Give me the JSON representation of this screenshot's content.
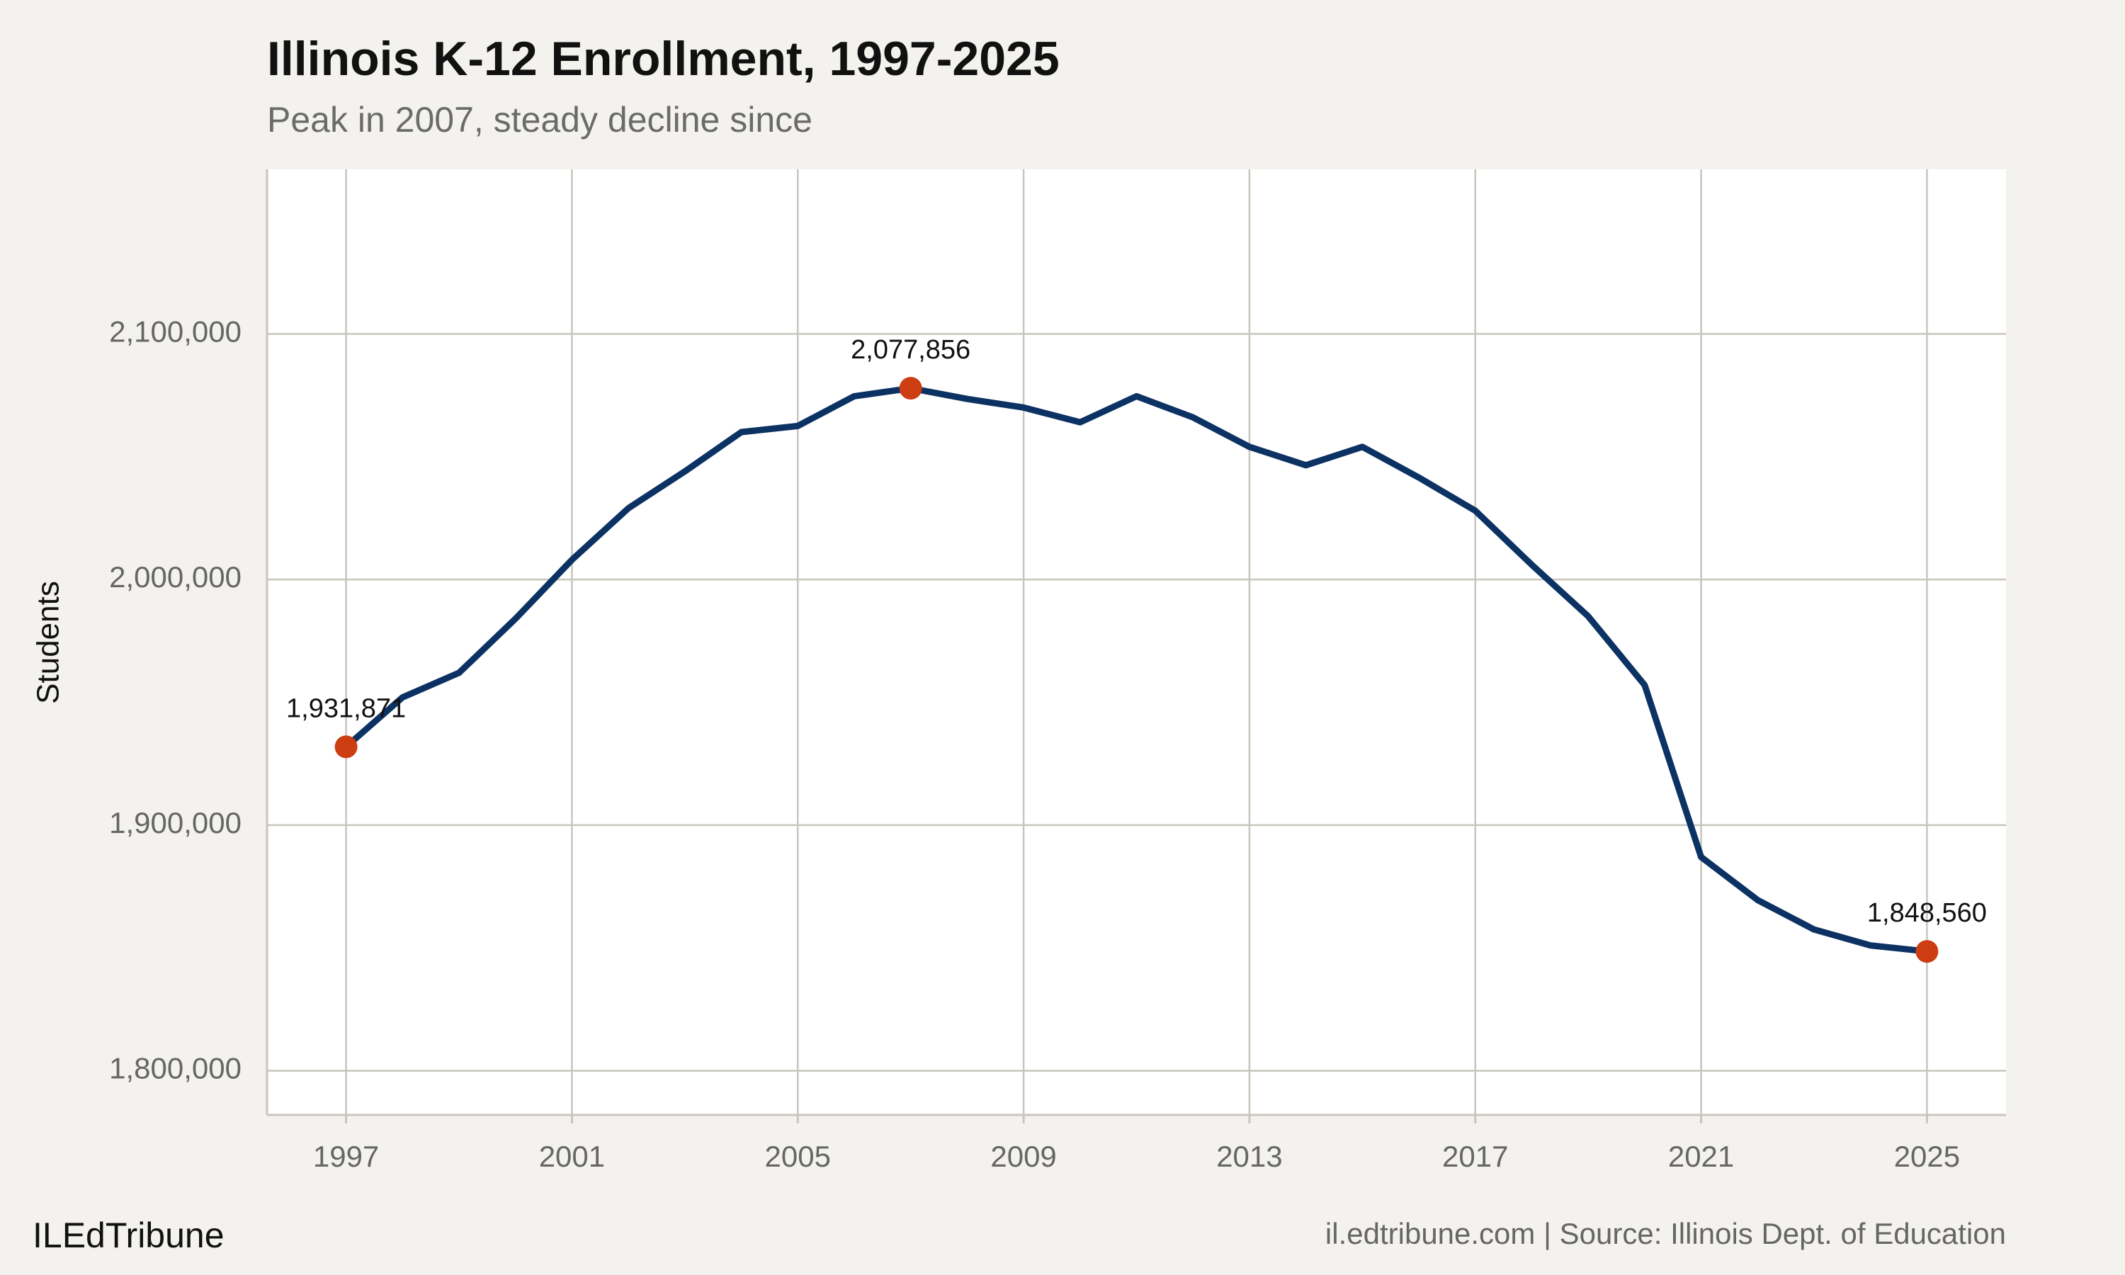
{
  "chart_data": {
    "type": "line",
    "title": "Illinois K-12 Enrollment, 1997-2025",
    "subtitle": "Peak in 2007, steady decline since",
    "y_label": "Students",
    "brand": "ILEdTribune",
    "source": "il.edtribune.com | Source: Illinois Dept. of Education",
    "x": [
      1997,
      1998,
      1999,
      2000,
      2001,
      2002,
      2003,
      2004,
      2005,
      2006,
      2007,
      2008,
      2009,
      2010,
      2011,
      2012,
      2013,
      2014,
      2015,
      2016,
      2017,
      2018,
      2019,
      2020,
      2021,
      2022,
      2023,
      2024,
      2025
    ],
    "series": [
      {
        "name": "Students",
        "color": "#0b3263",
        "values": [
          1931871,
          1952000,
          1962000,
          1984000,
          2008000,
          2029000,
          2044000,
          2060000,
          2062500,
          2074600,
          2077856,
          2073500,
          2070000,
          2064000,
          2074600,
          2066000,
          2054000,
          2046500,
          2054000,
          2041500,
          2028000,
          2006000,
          1985000,
          1957000,
          1887000,
          1869500,
          1857500,
          1851000,
          1848560
        ]
      }
    ],
    "annotations": [
      {
        "x": 1997,
        "y": 1931871,
        "label": "1,931,871"
      },
      {
        "x": 2007,
        "y": 2077856,
        "label": "2,077,856"
      },
      {
        "x": 2025,
        "y": 1848560,
        "label": "1,848,560"
      }
    ],
    "annotation_color": "#cc3d12",
    "xlim": [
      1995.6,
      2026.4
    ],
    "ylim": [
      1782000,
      2167000
    ],
    "xticks": [
      1997,
      2001,
      2005,
      2009,
      2013,
      2017,
      2021,
      2025
    ],
    "yticks": [
      {
        "value": 1800000,
        "label": "1,800,000"
      },
      {
        "value": 1900000,
        "label": "1,900,000"
      },
      {
        "value": 2000000,
        "label": "2,000,000"
      },
      {
        "value": 2100000,
        "label": "2,100,000"
      }
    ],
    "grid": true
  }
}
